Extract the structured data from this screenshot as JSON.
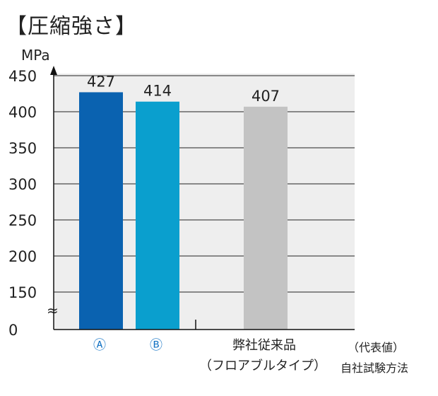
{
  "title": "【圧縮強さ】",
  "notes": {
    "representative": "（代表値）",
    "test_method": "自社試験方法"
  },
  "colors": {
    "series_a": "#0a62b0",
    "series_b": "#0a9fce",
    "competitor": "#c3c3c3",
    "plot_bg": "#eeeeee",
    "grid": "#222222"
  },
  "chart_data": {
    "type": "bar",
    "categories": [
      "Ⓐ",
      "Ⓑ",
      "弊社従来品\n（フロアブルタイプ）"
    ],
    "category_colors": [
      "#0a62b0",
      "#0a9fce",
      "#c3c3c3"
    ],
    "category_label_colors": [
      "#1473c4",
      "#1473c4",
      "#222222"
    ],
    "values": [
      427,
      414,
      407
    ],
    "data_labels": [
      "427",
      "414",
      "407"
    ],
    "ylabel": "MPa",
    "yticks": [
      0,
      150,
      200,
      250,
      300,
      350,
      400,
      450
    ],
    "ylim": [
      0,
      450
    ],
    "y_axis_break": true,
    "y_break_symbol": "≈",
    "grid": true,
    "legend": "none"
  }
}
